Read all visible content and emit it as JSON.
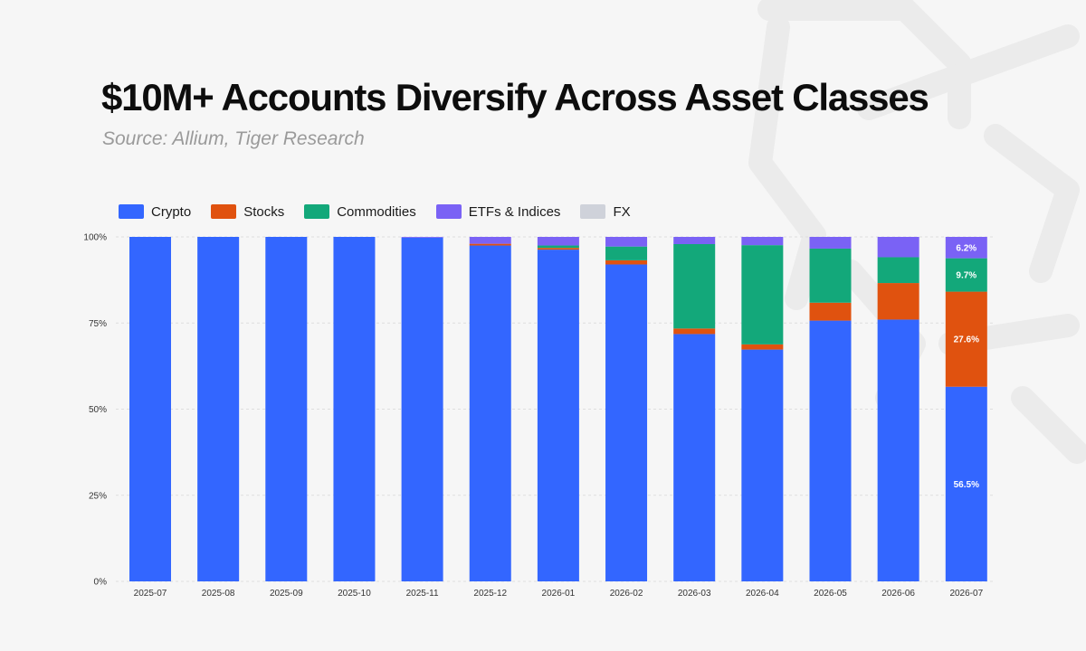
{
  "title": "$10M+ Accounts Diversify Across Asset Classes",
  "subtitle": "Source: Allium, Tiger Research",
  "colors": {
    "crypto": "#3366ff",
    "stocks": "#e0520f",
    "commodities": "#13a87a",
    "etfs": "#7a62f5",
    "fx": "#cfd2da",
    "background": "#f6f6f6",
    "watermark": "#ebebeb"
  },
  "chart_data": {
    "type": "bar",
    "stacked": true,
    "title": "$10M+ Accounts Diversify Across Asset Classes",
    "subtitle": "Source: Allium, Tiger Research",
    "xlabel": "",
    "ylabel": "",
    "ylim": [
      0,
      100
    ],
    "yticks": [
      "0%",
      "25%",
      "50%",
      "75%",
      "100%"
    ],
    "grid": true,
    "legend_position": "top-left",
    "categories": [
      "2025-07",
      "2025-08",
      "2025-09",
      "2025-10",
      "2025-11",
      "2025-12",
      "2026-01",
      "2026-02",
      "2026-03",
      "2026-04",
      "2026-05",
      "2026-06",
      "2026-07"
    ],
    "series": [
      {
        "name": "Crypto",
        "color": "#3366ff",
        "values": [
          100,
          100,
          100,
          100,
          99.8,
          97.5,
          96.3,
          92.0,
          71.8,
          67.3,
          75.7,
          76.0,
          56.5
        ]
      },
      {
        "name": "Stocks",
        "color": "#e0520f",
        "values": [
          0,
          0,
          0,
          0,
          0,
          0.5,
          0.5,
          1.2,
          1.6,
          1.5,
          5.2,
          10.6,
          27.6
        ]
      },
      {
        "name": "Commodities",
        "color": "#13a87a",
        "values": [
          0,
          0,
          0,
          0,
          0,
          0,
          0.7,
          4.0,
          24.5,
          28.8,
          15.7,
          7.5,
          9.7
        ]
      },
      {
        "name": "ETFs & Indices",
        "color": "#7a62f5",
        "values": [
          0,
          0,
          0,
          0,
          0.2,
          2.0,
          2.5,
          2.8,
          2.1,
          2.4,
          3.4,
          5.9,
          6.2
        ]
      },
      {
        "name": "FX",
        "color": "#cfd2da",
        "values": [
          0,
          0,
          0,
          0,
          0,
          0,
          0,
          0,
          0,
          0,
          0,
          0,
          0
        ]
      }
    ],
    "data_labels": [
      {
        "category": "2026-07",
        "series": "Crypto",
        "text": "56.5%"
      },
      {
        "category": "2026-07",
        "series": "Stocks",
        "text": "27.6%"
      },
      {
        "category": "2026-07",
        "series": "Commodities",
        "text": "9.7%"
      },
      {
        "category": "2026-07",
        "series": "ETFs & Indices",
        "text": "6.2%"
      }
    ]
  }
}
